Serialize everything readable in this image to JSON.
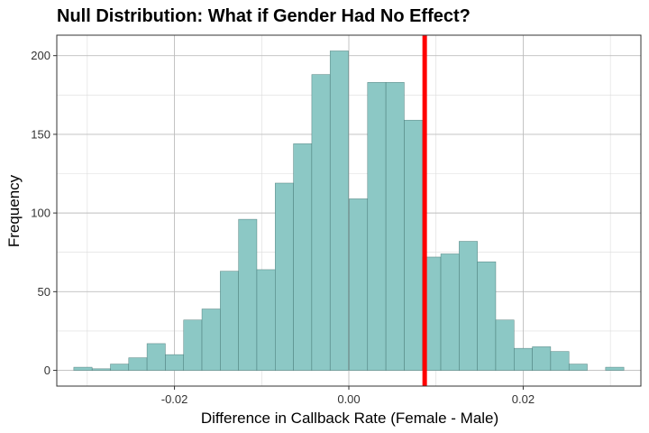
{
  "chart_data": {
    "type": "bar",
    "title": "Null Distribution: What if Gender Had No Effect?",
    "xlabel": "Difference in Callback Rate (Female - Male)",
    "ylabel": "Frequency",
    "xlim": [
      -0.0335,
      0.0335
    ],
    "ylim": [
      -10,
      213
    ],
    "grid": true,
    "bin_width": 0.0021,
    "bin_centers": [
      -0.0305,
      -0.0284,
      -0.0263,
      -0.0242,
      -0.0221,
      -0.02,
      -0.0179,
      -0.0158,
      -0.0137,
      -0.0116,
      -0.0095,
      -0.0074,
      -0.0053,
      -0.0032,
      -0.0011,
      0.0011,
      0.0032,
      0.0053,
      0.0074,
      0.0095,
      0.0116,
      0.0137,
      0.0158,
      0.0179,
      0.02,
      0.0221,
      0.0242,
      0.0263,
      0.0284,
      0.0305
    ],
    "values": [
      2,
      1,
      4,
      8,
      17,
      10,
      32,
      39,
      63,
      96,
      64,
      119,
      144,
      188,
      203,
      109,
      183,
      183,
      159,
      72,
      74,
      82,
      69,
      32,
      14,
      15,
      12,
      4,
      0,
      2
    ],
    "observed_line": 0.0087,
    "bar_color": "#8CC8C5",
    "bar_outline": "#3B6B69",
    "line_color": "#FF0000",
    "x_ticks": [
      {
        "value": -0.02,
        "label": "-0.02"
      },
      {
        "value": 0.0,
        "label": "0.00"
      },
      {
        "value": 0.02,
        "label": "0.02"
      }
    ],
    "y_ticks": [
      {
        "value": 0,
        "label": "0"
      },
      {
        "value": 50,
        "label": "50"
      },
      {
        "value": 100,
        "label": "100"
      },
      {
        "value": 150,
        "label": "150"
      },
      {
        "value": 200,
        "label": "200"
      }
    ]
  }
}
